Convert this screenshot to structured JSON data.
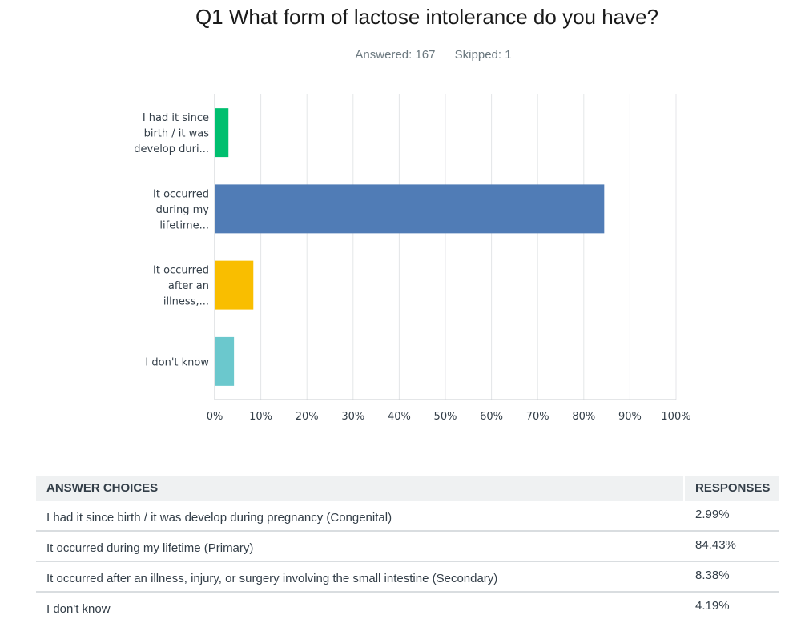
{
  "header": {
    "title": "Q1 What form of lactose intolerance do you have?",
    "answered": "Answered: 167",
    "skipped": "Skipped: 1"
  },
  "chart_data": {
    "type": "bar",
    "orientation": "horizontal",
    "categories": [
      [
        "I had it since",
        "birth / it was",
        "develop duri..."
      ],
      [
        "It occurred",
        "during my",
        "lifetime..."
      ],
      [
        "It occurred",
        "after an",
        "illness,..."
      ],
      [
        "I don't know"
      ]
    ],
    "values": [
      2.99,
      84.43,
      8.38,
      4.19
    ],
    "colors": [
      "#00bf6f",
      "#507cb6",
      "#f9be00",
      "#6bc8cd"
    ],
    "xlim": [
      0,
      100
    ],
    "xticks": [
      "0%",
      "10%",
      "20%",
      "30%",
      "40%",
      "50%",
      "60%",
      "70%",
      "80%",
      "90%",
      "100%"
    ],
    "grid": true
  },
  "table": {
    "header_choice": "ANSWER CHOICES",
    "header_responses": "RESPONSES",
    "rows": [
      {
        "choice": "I had it since birth / it was develop during pregnancy (Congenital)",
        "response": "2.99%"
      },
      {
        "choice": "It occurred during my lifetime (Primary)",
        "response": "84.43%"
      },
      {
        "choice": "It occurred after an illness, injury, or surgery involving the small intestine (Secondary)",
        "response": "8.38%"
      },
      {
        "choice": "I don't know",
        "response": "4.19%"
      }
    ]
  }
}
